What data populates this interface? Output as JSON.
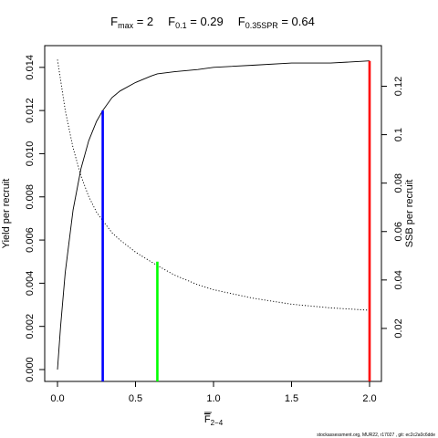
{
  "chart_data": {
    "type": "line",
    "title_parts": [
      {
        "main": "F",
        "sub": "max",
        "value": " = 2"
      },
      {
        "main": "F",
        "sub": "0.1",
        "value": " = 0.29"
      },
      {
        "main": "F",
        "sub": "0.35SPR",
        "value": " = 0.64"
      }
    ],
    "xlabel_main": "F",
    "xlabel_sub": "2−4",
    "ylabel_left": "Yield per recruit",
    "ylabel_right": "SSB per recruit",
    "xlim": [
      0,
      2
    ],
    "ylim_left": [
      0,
      0.0145
    ],
    "ylim_right": [
      0,
      0.133
    ],
    "x_ticks": [
      {
        "value": 0,
        "label": "0.0"
      },
      {
        "value": 0.5,
        "label": "0.5"
      },
      {
        "value": 1,
        "label": "1.0"
      },
      {
        "value": 1.5,
        "label": "1.5"
      },
      {
        "value": 2,
        "label": "2.0"
      }
    ],
    "y_left_ticks": [
      {
        "value": 0,
        "label": "0.000"
      },
      {
        "value": 0.002,
        "label": "0.002"
      },
      {
        "value": 0.004,
        "label": "0.004"
      },
      {
        "value": 0.006,
        "label": "0.006"
      },
      {
        "value": 0.008,
        "label": "0.008"
      },
      {
        "value": 0.01,
        "label": "0.010"
      },
      {
        "value": 0.012,
        "label": "0.012"
      },
      {
        "value": 0.014,
        "label": "0.014"
      }
    ],
    "y_right_ticks": [
      {
        "value": 0.02,
        "label": "0.02"
      },
      {
        "value": 0.04,
        "label": "0.04"
      },
      {
        "value": 0.06,
        "label": "0.06"
      },
      {
        "value": 0.08,
        "label": "0.08"
      },
      {
        "value": 0.1,
        "label": "0.1"
      },
      {
        "value": 0.12,
        "label": "0.12"
      }
    ],
    "series": [
      {
        "axis": "left",
        "style": "solid",
        "color": "#000000",
        "x": [
          0,
          0.02,
          0.05,
          0.1,
          0.15,
          0.2,
          0.25,
          0.29,
          0.35,
          0.4,
          0.5,
          0.6,
          0.64,
          0.75,
          0.9,
          1.0,
          1.25,
          1.5,
          1.75,
          2.0
        ],
        "y": [
          0.0,
          0.002,
          0.0045,
          0.0074,
          0.0093,
          0.0106,
          0.0115,
          0.012,
          0.0126,
          0.0129,
          0.0133,
          0.0136,
          0.0137,
          0.0138,
          0.0139,
          0.014,
          0.0141,
          0.0142,
          0.0142,
          0.0143
        ]
      },
      {
        "axis": "right",
        "style": "dotted",
        "color": "#000000",
        "x": [
          0,
          0.05,
          0.1,
          0.15,
          0.2,
          0.25,
          0.29,
          0.35,
          0.4,
          0.5,
          0.6,
          0.64,
          0.75,
          0.9,
          1.0,
          1.25,
          1.5,
          1.75,
          2.0
        ],
        "y": [
          0.131,
          0.11,
          0.0945,
          0.083,
          0.0745,
          0.068,
          0.0645,
          0.0595,
          0.0565,
          0.0515,
          0.0475,
          0.046,
          0.042,
          0.038,
          0.036,
          0.0325,
          0.03,
          0.0285,
          0.0275
        ]
      }
    ],
    "reference_lines": [
      {
        "name": "F0.1",
        "x": 0.29,
        "y_top_left": 0.012,
        "color": "#0000ff"
      },
      {
        "name": "F0.35SPR",
        "x": 0.64,
        "y_top_left": 0.005,
        "color": "#00ff00"
      },
      {
        "name": "Fmax",
        "x": 2.0,
        "y_top_left": 0.0143,
        "color": "#ff0000"
      }
    ]
  },
  "footer_text": "stockassessment.org, MUR22, r17027 , git: ec2c2a0c6dde"
}
